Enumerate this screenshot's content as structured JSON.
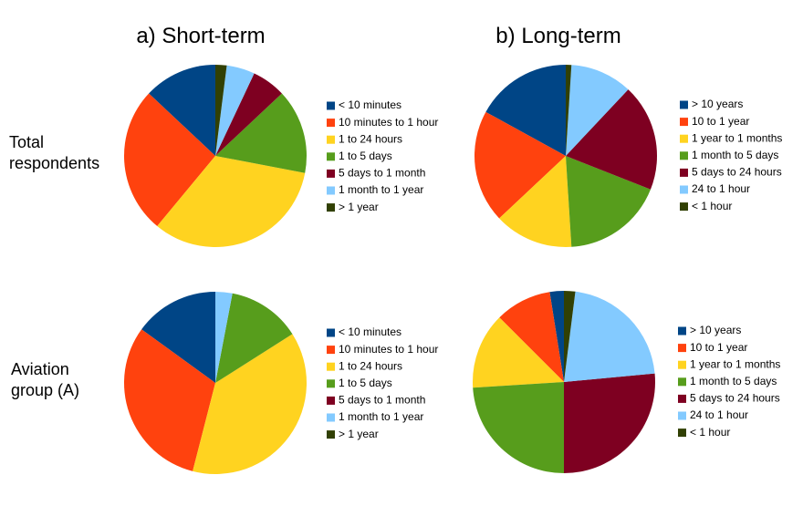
{
  "column_titles": [
    "a) Short-term",
    "b) Long-term"
  ],
  "row_labels": [
    "Total respondents",
    "Aviation group (A)"
  ],
  "chart_data": [
    {
      "type": "pie",
      "categories": [
        "< 10 minutes",
        "10 minutes to 1 hour",
        "1 to 24 hours",
        "1 to 5 days",
        "5 days to 1 month",
        "1 month to 1 year",
        "> 1 year"
      ],
      "values": [
        13,
        26,
        33,
        15,
        6,
        5,
        2
      ],
      "colors": [
        "#004586",
        "#ff420e",
        "#ffd320",
        "#579d1c",
        "#7e0021",
        "#83caff",
        "#314004"
      ]
    },
    {
      "type": "pie",
      "categories": [
        "> 10 years",
        "10 to 1 year",
        "1 year to 1 months",
        "1 month to  5 days",
        "5 days to 24 hours",
        "24 to 1 hour",
        "< 1 hour"
      ],
      "values": [
        17,
        20,
        14,
        18,
        19,
        11,
        1
      ],
      "colors": [
        "#004586",
        "#ff420e",
        "#ffd320",
        "#579d1c",
        "#7e0021",
        "#83caff",
        "#314004"
      ]
    },
    {
      "type": "pie",
      "categories": [
        "< 10 minutes",
        "10 minutes to 1 hour",
        "1 to 24 hours",
        "1 to 5 days",
        "5 days to 1 month",
        "1 month to 1 year",
        "> 1 year"
      ],
      "values": [
        15,
        31,
        38,
        13,
        0,
        3,
        0
      ],
      "colors": [
        "#004586",
        "#ff420e",
        "#ffd320",
        "#579d1c",
        "#7e0021",
        "#83caff",
        "#314004"
      ]
    },
    {
      "type": "pie",
      "categories": [
        "> 10 years",
        "10 to 1 year",
        "1 year to 1 months",
        "1 month to  5 days",
        "5 days to 24 hours",
        "24 to 1 hour",
        "< 1 hour"
      ],
      "values": [
        2.5,
        10,
        13.5,
        24,
        26.5,
        21.5,
        2
      ],
      "colors": [
        "#004586",
        "#ff420e",
        "#ffd320",
        "#579d1c",
        "#7e0021",
        "#83caff",
        "#314004"
      ]
    }
  ]
}
